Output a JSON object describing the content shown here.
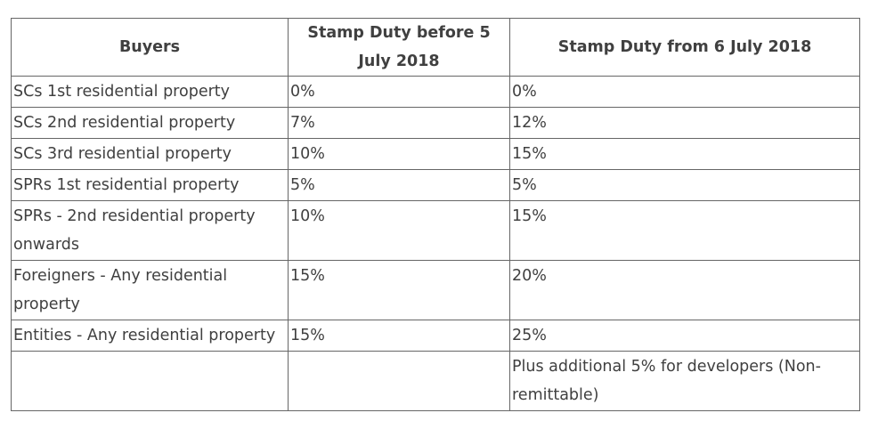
{
  "table": {
    "headers": [
      "Buyers",
      "Stamp Duty before 5 July 2018",
      "Stamp Duty from 6 July 2018"
    ],
    "rows": [
      [
        "SCs 1st residential property",
        "0%",
        "0%"
      ],
      [
        "SCs 2nd residential property",
        "7%",
        "12%"
      ],
      [
        "SCs 3rd residential property",
        "10%",
        "15%"
      ],
      [
        "SPRs 1st residential property",
        "5%",
        "5%"
      ],
      [
        "SPRs - 2nd residential property onwards",
        "10%",
        "15%"
      ],
      [
        "Foreigners - Any residential property",
        "15%",
        "20%"
      ],
      [
        "Entities - Any residential property",
        "15%",
        "25%"
      ],
      [
        "",
        "",
        "Plus additional 5% for developers (Non-remittable)"
      ]
    ]
  }
}
